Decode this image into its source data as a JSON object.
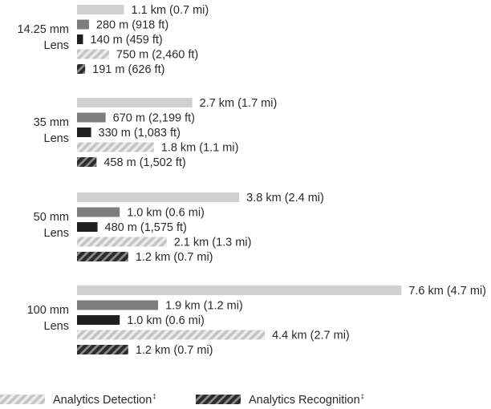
{
  "chart_data": {
    "type": "bar",
    "orientation": "horizontal",
    "unit": "km",
    "legend_position": "bottom",
    "groups": [
      {
        "name_line1": "14.25 mm",
        "name_line2": "Lens",
        "bars": [
          {
            "style": "detection",
            "value": 1.1,
            "label": "1.1 km (0.7 mi)"
          },
          {
            "style": "recognition",
            "value": 0.28,
            "label": "280 m (918 ft)"
          },
          {
            "style": "identification",
            "value": 0.14,
            "label": "140 m (459 ft)"
          },
          {
            "style": "analytics_detection",
            "value": 0.75,
            "label": "750 m (2,460 ft)"
          },
          {
            "style": "analytics_recognition",
            "value": 0.191,
            "label": "191 m (626 ft)"
          }
        ]
      },
      {
        "name_line1": "35 mm",
        "name_line2": "Lens",
        "bars": [
          {
            "style": "detection",
            "value": 2.7,
            "label": "2.7 km (1.7 mi)"
          },
          {
            "style": "recognition",
            "value": 0.67,
            "label": "670 m (2,199 ft)"
          },
          {
            "style": "identification",
            "value": 0.33,
            "label": "330 m (1,083 ft)"
          },
          {
            "style": "analytics_detection",
            "value": 1.8,
            "label": "1.8 km (1.1 mi)"
          },
          {
            "style": "analytics_recognition",
            "value": 0.458,
            "label": "458 m (1,502 ft)"
          }
        ]
      },
      {
        "name_line1": "50 mm",
        "name_line2": "Lens",
        "bars": [
          {
            "style": "detection",
            "value": 3.8,
            "label": "3.8 km (2.4 mi)"
          },
          {
            "style": "recognition",
            "value": 1.0,
            "label": "1.0 km (0.6 mi)"
          },
          {
            "style": "identification",
            "value": 0.48,
            "label": "480 m (1,575 ft)"
          },
          {
            "style": "analytics_detection",
            "value": 2.1,
            "label": "2.1 km (1.3 mi)"
          },
          {
            "style": "analytics_recognition",
            "value": 1.2,
            "label": "1.2 km (0.7 mi)"
          }
        ]
      },
      {
        "name_line1": "100 mm",
        "name_line2": "Lens",
        "bars": [
          {
            "style": "detection",
            "value": 7.6,
            "label": "7.6 km (4.7 mi)"
          },
          {
            "style": "recognition",
            "value": 1.9,
            "label": "1.9 km (1.2 mi)"
          },
          {
            "style": "identification",
            "value": 1.0,
            "label": "1.0 km (0.6 mi)"
          },
          {
            "style": "analytics_detection",
            "value": 4.4,
            "label": "4.4 km (2.7 mi)"
          },
          {
            "style": "analytics_recognition",
            "value": 1.2,
            "label": "1.2 km (0.7 mi)"
          }
        ]
      }
    ],
    "legend": [
      {
        "style": "analytics_detection",
        "label": "Analytics Detection",
        "mark": "‡"
      },
      {
        "style": "analytics_recognition",
        "label": "Analytics Recognition",
        "mark": "‡"
      }
    ],
    "colors": {
      "detection": "#d0d0d0",
      "recognition": "#7d7d7d",
      "identification": "#1f1f1f",
      "analytics_detection_stripe": "#c4c4c4",
      "analytics_recognition_stripe": "#2b2b2b",
      "text": "#2a2a2a"
    }
  }
}
